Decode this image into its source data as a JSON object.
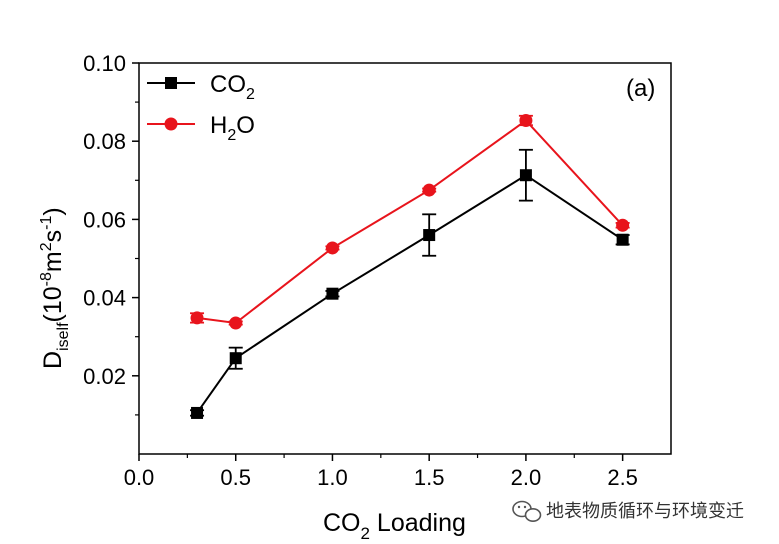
{
  "chart_data": {
    "type": "line",
    "panel_label": "(a)",
    "xlabel": {
      "base": "CO",
      "sub": "2",
      "rest": " Loading"
    },
    "ylabel": {
      "D": "D",
      "sub": "iself",
      "open": "(10",
      "exp1": "-8",
      "m": "m",
      "exp2": "2",
      "s": "s",
      "exp3": "-1",
      "close": ")"
    },
    "xlim": [
      0.0,
      2.75
    ],
    "ylim": [
      0.0,
      0.1
    ],
    "x_ticks": [
      "0.0",
      "0.5",
      "1.0",
      "1.5",
      "2.0",
      "2.5"
    ],
    "y_ticks": [
      "0.02",
      "0.04",
      "0.06",
      "0.08",
      "0.10"
    ],
    "series": [
      {
        "legend": {
          "base": "CO",
          "sub": "2",
          "rest": ""
        },
        "color": "#000000",
        "marker": "square",
        "x": [
          0.3,
          0.5,
          1.0,
          1.5,
          2.0,
          2.5
        ],
        "y": [
          0.0105,
          0.0245,
          0.041,
          0.056,
          0.0713,
          0.0548
        ],
        "err": [
          0.0007,
          0.0027,
          0.0007,
          0.0053,
          0.0065,
          0.0012
        ]
      },
      {
        "legend": {
          "base": "H",
          "sub": "2",
          "rest": "O"
        },
        "color": "#e8141c",
        "marker": "circle",
        "x": [
          0.3,
          0.5,
          1.0,
          1.5,
          2.0,
          2.5
        ],
        "y": [
          0.0348,
          0.0335,
          0.0527,
          0.0675,
          0.0853,
          0.0585
        ],
        "err": [
          0.0012,
          0.0004,
          0.0004,
          0.0004,
          0.0012,
          0.0006
        ]
      }
    ]
  },
  "watermark": {
    "icon": "wechat-icon",
    "text": "地表物质循环与环境变迁"
  }
}
